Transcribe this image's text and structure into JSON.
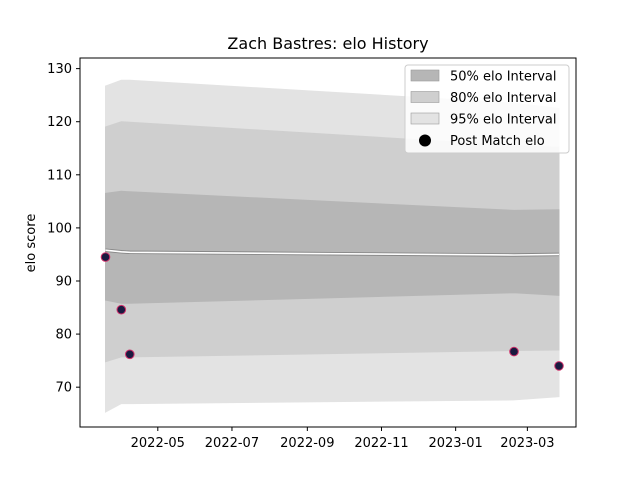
{
  "chart_data": {
    "type": "area",
    "title": "Zach Bastres: elo History",
    "xlabel": "",
    "ylabel": "elo score",
    "xlim": [
      "2022-02-26",
      "2023-04-10"
    ],
    "ylim": [
      62.5,
      132
    ],
    "x_ticks": [
      "2022-05-01",
      "2022-07-01",
      "2022-09-01",
      "2022-11-01",
      "2023-01-01",
      "2023-03-01"
    ],
    "x_tick_labels": [
      "2022-05",
      "2022-07",
      "2022-09",
      "2022-11",
      "2023-01",
      "2023-03"
    ],
    "y_ticks": [
      70,
      80,
      90,
      100,
      110,
      120,
      130
    ],
    "x": [
      "2022-03-19",
      "2022-04-01",
      "2022-04-08",
      "2023-02-18",
      "2023-03-27"
    ],
    "mean": [
      95.8,
      95.5,
      95.4,
      94.9,
      95.0
    ],
    "bands": [
      {
        "name": "95% elo Interval",
        "color": "#e3e3e3",
        "lower": [
          65.3,
          66.9,
          66.9,
          67.6,
          68.2
        ],
        "upper": [
          126.7,
          127.8,
          127.8,
          123.5,
          122.5
        ]
      },
      {
        "name": "80% elo Interval",
        "color": "#cfcfcf",
        "lower": [
          74.8,
          75.7,
          75.7,
          76.9,
          77.0
        ],
        "upper": [
          119.0,
          120.0,
          119.9,
          115.5,
          115.2
        ]
      },
      {
        "name": "50% elo Interval",
        "color": "#b6b6b6",
        "lower": [
          86.4,
          85.8,
          85.8,
          87.8,
          87.3
        ],
        "upper": [
          106.5,
          106.9,
          106.8,
          103.3,
          103.4
        ]
      }
    ],
    "points": {
      "name": "Post Match elo",
      "x": [
        "2022-03-19",
        "2022-04-01",
        "2022-04-08",
        "2023-02-18",
        "2023-03-27"
      ],
      "y": [
        94.5,
        84.6,
        76.2,
        76.7,
        74.0
      ]
    },
    "legend_position": "top-right",
    "colors": {
      "band_50": "#b6b6b6",
      "band_80": "#cfcfcf",
      "band_95": "#e3e3e3",
      "mean_line": "#ffffff",
      "marker_fill": "#1a1a40",
      "marker_edge": "#d0306a"
    },
    "grid": false
  }
}
